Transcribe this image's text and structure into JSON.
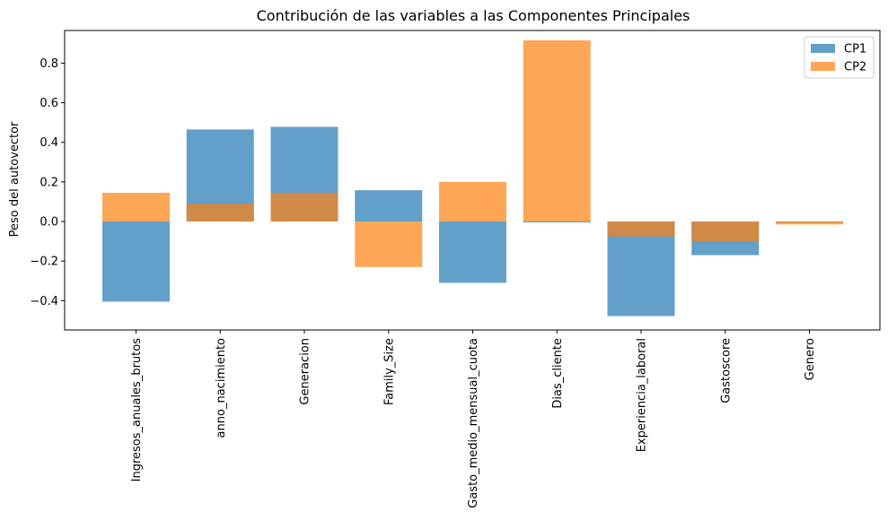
{
  "chart_data": {
    "type": "bar",
    "title": "Contribución de las variables a las Componentes Principales",
    "xlabel": "",
    "ylabel": "Peso del autovector",
    "categories": [
      "Ingresos_anuales_brutos",
      "anno_nacimiento",
      "Generacion",
      "Family_Size",
      "Gasto_medio_mensual_cuota",
      "Dias_cliente",
      "Experiencia_laboral",
      "Gastoscore",
      "Genero"
    ],
    "series": [
      {
        "name": "CP1",
        "color": "#1f77b4",
        "values": [
          -0.405,
          0.465,
          0.478,
          0.158,
          -0.31,
          -0.005,
          -0.478,
          -0.17,
          -0.005
        ]
      },
      {
        "name": "CP2",
        "color": "#ff7f0e",
        "values": [
          0.145,
          0.09,
          0.145,
          -0.23,
          0.2,
          0.915,
          -0.075,
          -0.1,
          -0.015
        ]
      }
    ],
    "ylim": [
      -0.548,
      0.965
    ],
    "yticks": [
      -0.4,
      -0.2,
      0.0,
      0.2,
      0.4,
      0.6,
      0.8
    ],
    "ytick_labels": [
      "−0.4",
      "−0.2",
      "0.0",
      "0.2",
      "0.4",
      "0.6",
      "0.8"
    ],
    "legend_position": "top-right",
    "bar_alpha": 0.7,
    "grid": false
  }
}
